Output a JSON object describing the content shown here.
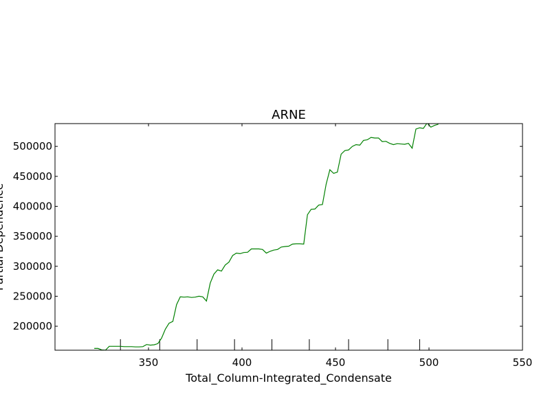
{
  "chart_data": {
    "type": "line",
    "title": "ARNE",
    "xlabel": "Total_Column-Integrated_Condensate",
    "ylabel": "Partial Dependence",
    "xlim": [
      300,
      550
    ],
    "ylim": [
      160000,
      538000
    ],
    "xticks": [
      350,
      400,
      450,
      500,
      550
    ],
    "yticks": [
      200000,
      250000,
      300000,
      350000,
      400000,
      450000,
      500000
    ],
    "rug_x": [
      335,
      356,
      376,
      396,
      416,
      436,
      457,
      478,
      495
    ],
    "grid": false,
    "legend": "none",
    "series": [
      {
        "color": "#008000",
        "x": [
          321,
          323,
          325,
          327,
          329,
          331,
          333,
          335,
          337,
          339,
          341,
          343,
          345,
          347,
          349,
          351,
          353,
          355,
          357,
          359,
          361,
          363,
          365,
          367,
          369,
          371,
          373,
          375,
          377,
          379,
          381,
          383,
          385,
          387,
          389,
          391,
          393,
          395,
          397,
          399,
          401,
          403,
          405,
          407,
          409,
          411,
          413,
          415,
          417,
          419,
          421,
          423,
          425,
          427,
          429,
          431,
          433,
          435,
          437,
          439,
          441,
          443,
          445,
          447,
          449,
          451,
          453,
          455,
          457,
          459,
          461,
          463,
          465,
          467,
          469,
          471,
          473,
          475,
          477,
          479,
          481,
          483,
          485,
          487,
          489,
          491,
          493,
          495,
          497,
          499,
          501,
          503,
          505
        ],
        "y": [
          163000,
          163000,
          160500,
          160000,
          166500,
          166500,
          166500,
          166500,
          166000,
          166000,
          166000,
          165500,
          165500,
          166000,
          169500,
          168500,
          169000,
          171000,
          180000,
          195000,
          205000,
          208000,
          236000,
          249000,
          248500,
          249000,
          248000,
          248500,
          250000,
          249000,
          242000,
          272000,
          287000,
          294000,
          292000,
          302000,
          307000,
          318000,
          322000,
          321000,
          323000,
          323500,
          329000,
          329000,
          329000,
          328000,
          322000,
          325000,
          327000,
          328000,
          332000,
          333000,
          333500,
          337000,
          337500,
          337500,
          337000,
          386000,
          395000,
          395500,
          402000,
          403000,
          437000,
          461000,
          455000,
          457000,
          487000,
          493000,
          494000,
          500000,
          503000,
          502000,
          510000,
          511000,
          515000,
          514000,
          514000,
          508000,
          508500,
          505000,
          503000,
          504500,
          504000,
          503500,
          505000,
          497000,
          529000,
          531000,
          530000,
          539000,
          532000,
          535000,
          537000
        ]
      }
    ]
  }
}
